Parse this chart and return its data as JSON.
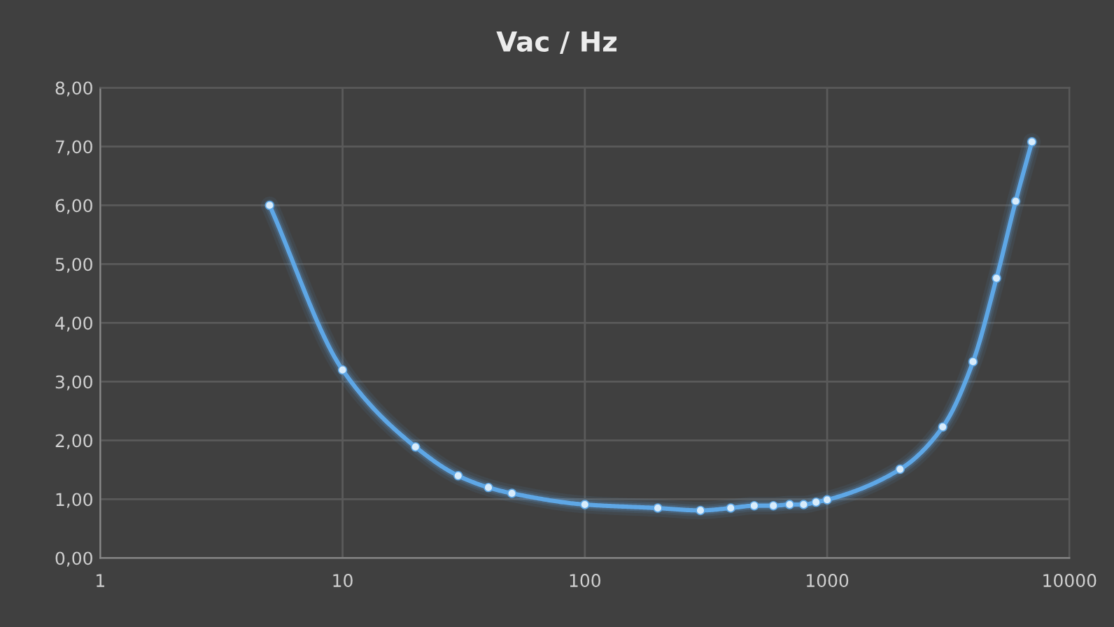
{
  "chart_data": {
    "type": "line",
    "title": "Vac / Hz",
    "x": [
      5,
      10,
      20,
      30,
      40,
      50,
      100,
      200,
      300,
      400,
      500,
      600,
      700,
      800,
      900,
      1000,
      2000,
      3000,
      4000,
      5000,
      6000,
      7000
    ],
    "series": [
      {
        "color": "#5ea7e6",
        "values": [
          6.0,
          3.2,
          1.89,
          1.4,
          1.2,
          1.1,
          0.91,
          0.85,
          0.81,
          0.85,
          0.89,
          0.89,
          0.91,
          0.91,
          0.95,
          0.99,
          1.51,
          2.23,
          3.34,
          4.76,
          6.07,
          7.08
        ]
      }
    ],
    "log": "x",
    "xlim": [
      1,
      10000
    ],
    "xticks": [
      1,
      10,
      100,
      1000,
      10000
    ],
    "ylim": [
      0,
      8
    ],
    "yticks": [
      {
        "value": 0,
        "label": "0,00"
      },
      {
        "value": 1,
        "label": "1,00"
      },
      {
        "value": 2,
        "label": "2,00"
      },
      {
        "value": 3,
        "label": "3,00"
      },
      {
        "value": 4,
        "label": "4,00"
      },
      {
        "value": 5,
        "label": "5,00"
      },
      {
        "value": 6,
        "label": "6,00"
      },
      {
        "value": 7,
        "label": "7,00"
      },
      {
        "value": 8,
        "label": "8,00"
      }
    ],
    "grid": true,
    "marker": "circle",
    "line_style": "solid"
  }
}
